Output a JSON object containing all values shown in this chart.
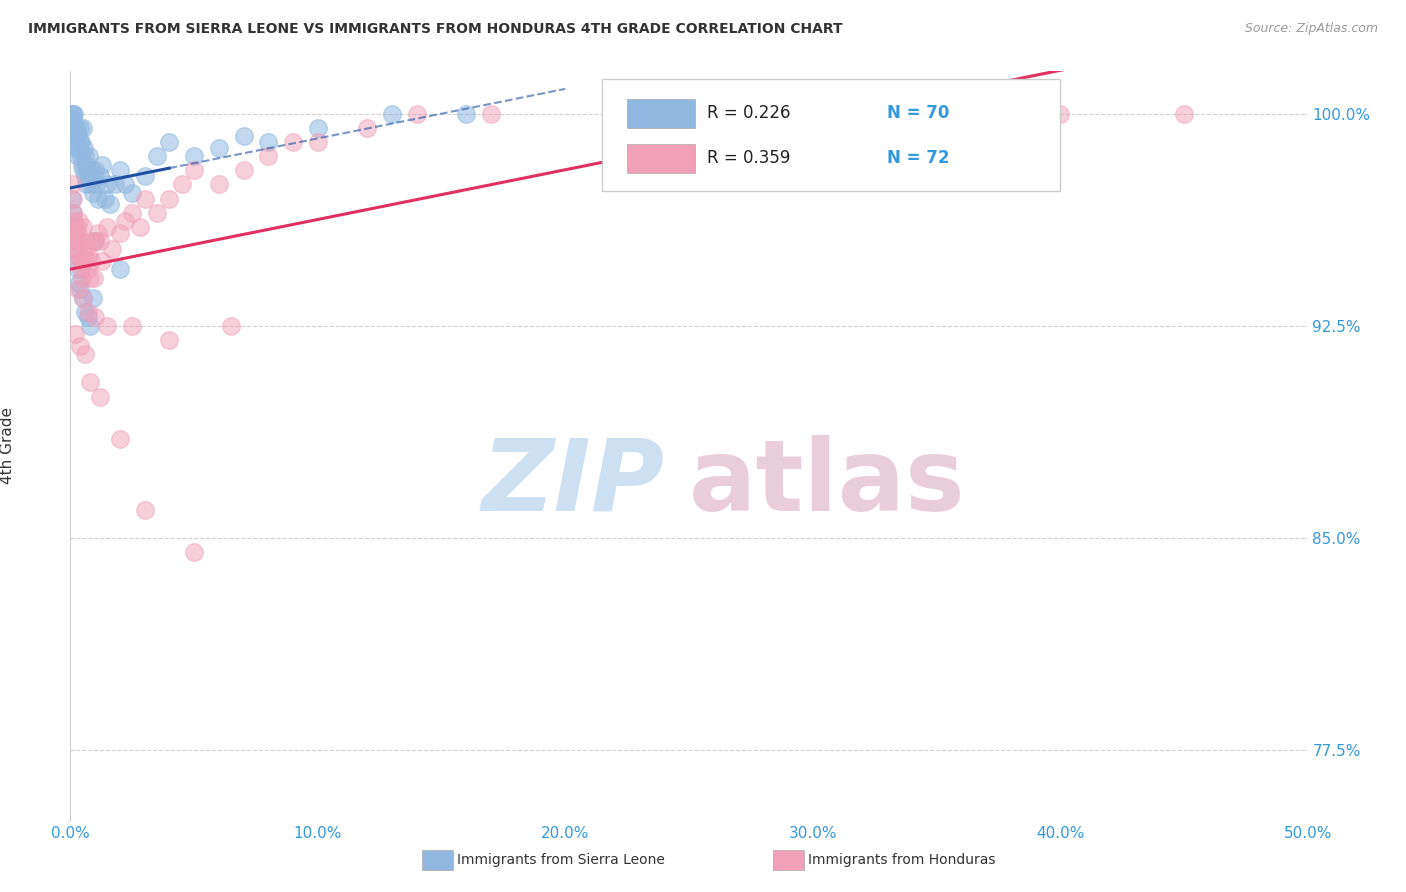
{
  "title": "IMMIGRANTS FROM SIERRA LEONE VS IMMIGRANTS FROM HONDURAS 4TH GRADE CORRELATION CHART",
  "source": "Source: ZipAtlas.com",
  "ylabel": "4th Grade",
  "legend_r1": "R = 0.226",
  "legend_n1": "N = 70",
  "legend_r2": "R = 0.359",
  "legend_n2": "N = 72",
  "legend_label_1": "Immigrants from Sierra Leone",
  "legend_label_2": "Immigrants from Honduras",
  "sierra_leone_color": "#90b8e0",
  "honduras_color": "#f0a0b8",
  "trendline_sl_color": "#2050a0",
  "trendline_h_color": "#e03060",
  "watermark_zip": "ZIP",
  "watermark_atlas": "atlas",
  "xlim": [
    0.0,
    50.0
  ],
  "ylim": [
    75.0,
    101.5
  ],
  "yticks": [
    77.5,
    85.0,
    92.5,
    100.0
  ],
  "ytick_labels": [
    "77.5%",
    "85.0%",
    "92.5%",
    "100.0%"
  ],
  "xticks": [
    0,
    10,
    20,
    30,
    40,
    50
  ],
  "xtick_labels": [
    "0.0%",
    "10.0%",
    "20.0%",
    "30.0%",
    "40.0%",
    "50.0%"
  ],
  "sierra_leone_x": [
    0.05,
    0.05,
    0.08,
    0.1,
    0.12,
    0.15,
    0.18,
    0.2,
    0.22,
    0.25,
    0.28,
    0.3,
    0.32,
    0.35,
    0.38,
    0.4,
    0.42,
    0.45,
    0.48,
    0.5,
    0.52,
    0.55,
    0.58,
    0.6,
    0.62,
    0.65,
    0.68,
    0.7,
    0.75,
    0.8,
    0.85,
    0.9,
    0.95,
    1.0,
    1.05,
    1.1,
    1.2,
    1.3,
    1.4,
    1.5,
    1.6,
    1.8,
    2.0,
    2.2,
    2.5,
    3.0,
    3.5,
    4.0,
    5.0,
    6.0,
    7.0,
    8.0,
    10.0,
    13.0,
    16.0,
    0.05,
    0.1,
    0.15,
    0.2,
    0.25,
    0.3,
    0.35,
    0.4,
    0.5,
    0.6,
    0.7,
    0.8,
    0.9,
    1.0,
    2.0
  ],
  "sierra_leone_y": [
    100.0,
    99.8,
    99.5,
    100.0,
    99.8,
    100.0,
    99.5,
    99.2,
    99.0,
    98.8,
    99.5,
    98.5,
    99.2,
    98.8,
    99.0,
    99.5,
    98.5,
    99.0,
    98.2,
    99.5,
    98.0,
    98.8,
    97.8,
    98.5,
    98.2,
    97.5,
    98.0,
    97.8,
    98.5,
    97.5,
    98.0,
    97.2,
    97.8,
    98.0,
    97.5,
    97.0,
    97.8,
    98.2,
    97.0,
    97.5,
    96.8,
    97.5,
    98.0,
    97.5,
    97.2,
    97.8,
    98.5,
    99.0,
    98.5,
    98.8,
    99.2,
    99.0,
    99.5,
    100.0,
    100.0,
    97.0,
    96.5,
    96.0,
    95.5,
    95.0,
    94.5,
    94.0,
    93.8,
    93.5,
    93.0,
    92.8,
    92.5,
    93.5,
    95.5,
    94.5
  ],
  "honduras_x": [
    0.05,
    0.1,
    0.12,
    0.15,
    0.18,
    0.2,
    0.22,
    0.25,
    0.28,
    0.3,
    0.32,
    0.35,
    0.38,
    0.4,
    0.42,
    0.45,
    0.48,
    0.5,
    0.55,
    0.6,
    0.65,
    0.7,
    0.75,
    0.8,
    0.85,
    0.9,
    0.95,
    1.0,
    1.1,
    1.2,
    1.3,
    1.5,
    1.7,
    2.0,
    2.2,
    2.5,
    2.8,
    3.0,
    3.5,
    4.0,
    4.5,
    5.0,
    6.0,
    7.0,
    8.0,
    9.0,
    10.0,
    12.0,
    14.0,
    17.0,
    22.0,
    26.0,
    30.0,
    35.0,
    40.0,
    45.0,
    0.3,
    0.5,
    0.7,
    1.0,
    1.5,
    2.5,
    4.0,
    6.5,
    0.2,
    0.4,
    0.6,
    0.8,
    1.2,
    2.0,
    3.0,
    5.0
  ],
  "honduras_y": [
    97.5,
    97.0,
    96.5,
    96.2,
    95.8,
    95.5,
    95.2,
    95.0,
    96.0,
    95.5,
    95.8,
    96.2,
    95.0,
    94.8,
    94.5,
    95.5,
    94.2,
    96.0,
    95.0,
    94.8,
    95.2,
    94.5,
    95.0,
    94.2,
    94.8,
    95.5,
    94.2,
    95.5,
    95.8,
    95.5,
    94.8,
    96.0,
    95.2,
    95.8,
    96.2,
    96.5,
    96.0,
    97.0,
    96.5,
    97.0,
    97.5,
    98.0,
    97.5,
    98.0,
    98.5,
    99.0,
    99.0,
    99.5,
    100.0,
    100.0,
    100.0,
    99.8,
    100.0,
    100.0,
    100.0,
    100.0,
    93.8,
    93.5,
    93.0,
    92.8,
    92.5,
    92.5,
    92.0,
    92.5,
    92.2,
    91.8,
    91.5,
    90.5,
    90.0,
    88.5,
    86.0,
    84.5
  ]
}
